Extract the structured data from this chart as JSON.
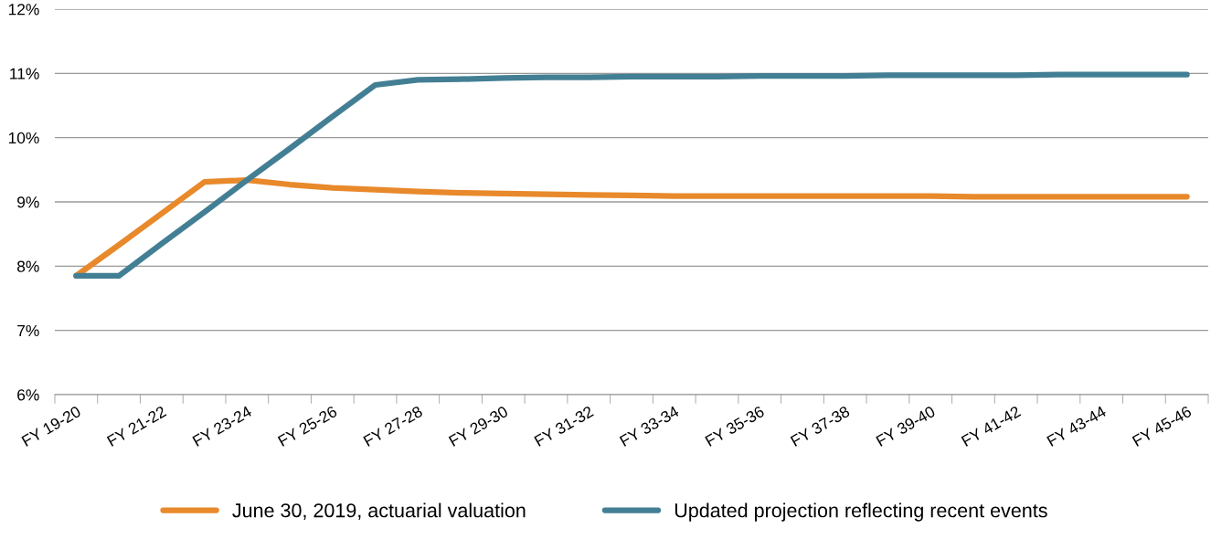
{
  "chart_data": {
    "type": "line",
    "categories": [
      "FY 19-20",
      null,
      "FY 21-22",
      null,
      "FY 23-24",
      null,
      "FY 25-26",
      null,
      "FY 27-28",
      null,
      "FY 29-30",
      null,
      "FY 31-32",
      null,
      "FY 33-34",
      null,
      "FY 35-36",
      null,
      "FY 37-38",
      null,
      "FY 39-40",
      null,
      "FY 41-42",
      null,
      "FY 43-44",
      null,
      "FY 45-46"
    ],
    "series": [
      {
        "name": "June 30, 2019, actuarial valuation",
        "color": "#e8892b",
        "values": [
          7.85,
          8.33,
          8.82,
          9.31,
          9.34,
          9.27,
          9.22,
          9.19,
          9.16,
          9.14,
          9.13,
          9.12,
          9.11,
          9.1,
          9.09,
          9.09,
          9.09,
          9.09,
          9.09,
          9.09,
          9.09,
          9.08,
          9.08,
          9.08,
          9.08,
          9.08,
          9.08
        ]
      },
      {
        "name": "Updated projection reflecting recent events",
        "color": "#437f94",
        "values": [
          7.85,
          7.85,
          8.35,
          8.84,
          9.34,
          9.83,
          10.33,
          10.82,
          10.9,
          10.91,
          10.93,
          10.94,
          10.94,
          10.95,
          10.95,
          10.95,
          10.96,
          10.96,
          10.96,
          10.97,
          10.97,
          10.97,
          10.97,
          10.98,
          10.98,
          10.98,
          10.98
        ]
      }
    ],
    "ylim": [
      6,
      12
    ],
    "yticks": [
      {
        "value": 6,
        "label": "6%"
      },
      {
        "value": 7,
        "label": "7%"
      },
      {
        "value": 8,
        "label": "8%"
      },
      {
        "value": 9,
        "label": "9%"
      },
      {
        "value": 10,
        "label": "10%"
      },
      {
        "value": 11,
        "label": "11%"
      },
      {
        "value": 12,
        "label": "12%"
      }
    ],
    "grid": "y",
    "legend": "bottom",
    "marker": "none",
    "line_style": "solid"
  }
}
